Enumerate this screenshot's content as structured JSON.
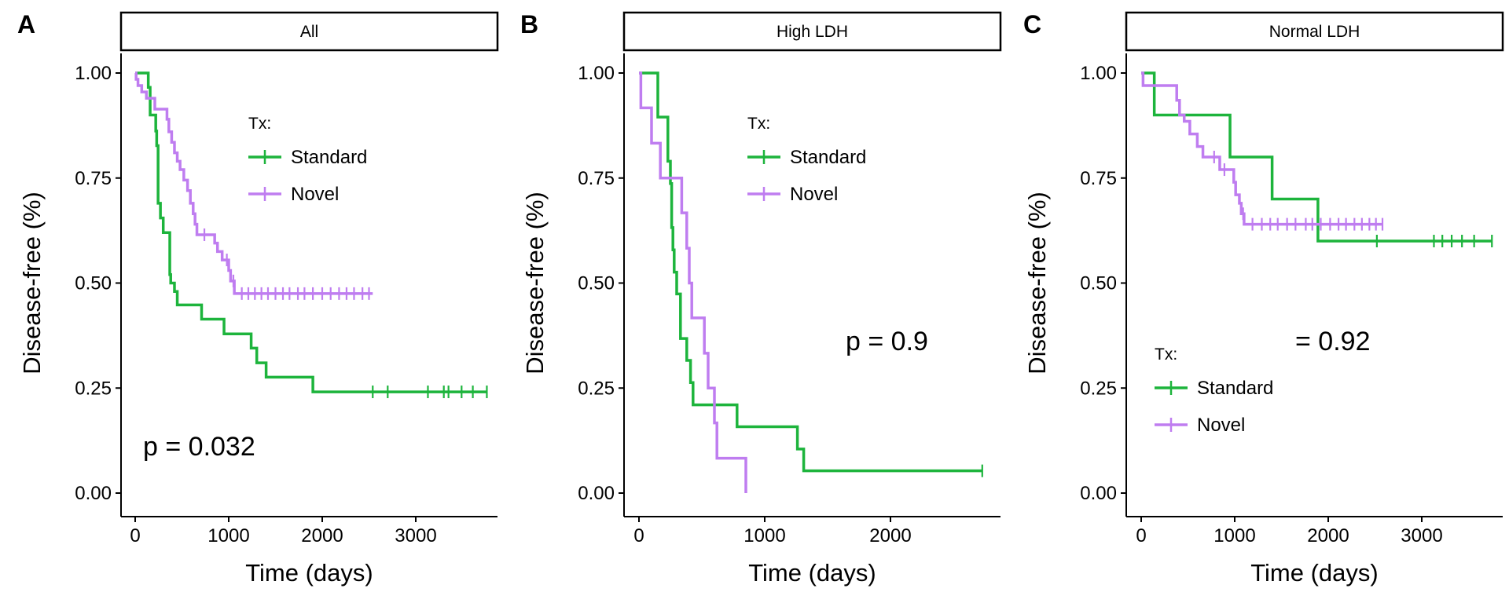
{
  "colors": {
    "Standard": "#1DB43C",
    "Novel": "#BF7DF0"
  },
  "legend_title": "Tx:",
  "legend_labels": [
    "Standard",
    "Novel"
  ],
  "chart_data": [
    {
      "type": "line",
      "panel": "A",
      "strip": "All",
      "xlabel": "Time (days)",
      "ylabel": "Disease-free (%)",
      "xlim": [
        -150,
        3900
      ],
      "ylim": [
        -0.04,
        1.04
      ],
      "xticks": [
        0,
        1000,
        2000,
        3000
      ],
      "yticks": [
        0.0,
        0.25,
        0.5,
        0.75,
        1.0
      ],
      "ytick_labels": [
        "0.00",
        "0.25",
        "0.50",
        "0.75",
        "1.00"
      ],
      "annotation": "p = 0.032",
      "legend_position": "upper-middle",
      "series": [
        {
          "name": "Standard",
          "steps": [
            [
              0,
              1.0
            ],
            [
              140,
              0.966
            ],
            [
              160,
              0.9
            ],
            [
              220,
              0.862
            ],
            [
              230,
              0.827
            ],
            [
              245,
              0.69
            ],
            [
              270,
              0.655
            ],
            [
              300,
              0.62
            ],
            [
              370,
              0.52
            ],
            [
              380,
              0.5
            ],
            [
              420,
              0.48
            ],
            [
              450,
              0.448
            ],
            [
              710,
              0.414
            ],
            [
              950,
              0.379
            ],
            [
              1240,
              0.345
            ],
            [
              1300,
              0.31
            ],
            [
              1400,
              0.276
            ],
            [
              1900,
              0.241
            ],
            [
              3760,
              0.241
            ]
          ],
          "censors": [
            2540,
            2700,
            3130,
            3300,
            3350,
            3490,
            3610,
            3760
          ]
        },
        {
          "name": "Novel",
          "steps": [
            [
              0,
              1.0
            ],
            [
              10,
              0.985
            ],
            [
              30,
              0.97
            ],
            [
              70,
              0.955
            ],
            [
              120,
              0.94
            ],
            [
              210,
              0.914
            ],
            [
              340,
              0.89
            ],
            [
              360,
              0.86
            ],
            [
              390,
              0.835
            ],
            [
              420,
              0.81
            ],
            [
              450,
              0.79
            ],
            [
              480,
              0.77
            ],
            [
              520,
              0.745
            ],
            [
              560,
              0.72
            ],
            [
              590,
              0.69
            ],
            [
              620,
              0.665
            ],
            [
              640,
              0.64
            ],
            [
              660,
              0.615
            ],
            [
              850,
              0.595
            ],
            [
              880,
              0.575
            ],
            [
              930,
              0.555
            ],
            [
              1000,
              0.53
            ],
            [
              1020,
              0.505
            ],
            [
              1060,
              0.475
            ],
            [
              2540,
              0.475
            ]
          ],
          "censors": [
            740,
            980,
            1050,
            1140,
            1210,
            1280,
            1350,
            1420,
            1500,
            1580,
            1650,
            1740,
            1810,
            1900,
            2000,
            2090,
            2180,
            2260,
            2340,
            2430,
            2500
          ]
        }
      ]
    },
    {
      "type": "line",
      "panel": "B",
      "strip": "High LDH",
      "xlabel": "Time (days)",
      "ylabel": "Disease-free (%)",
      "xlim": [
        -60,
        2800
      ],
      "ylim": [
        -0.04,
        1.04
      ],
      "xticks": [
        0,
        1000,
        2000
      ],
      "yticks": [
        0.0,
        0.25,
        0.5,
        0.75,
        1.0
      ],
      "ytick_labels": [
        "0.00",
        "0.25",
        "0.50",
        "0.75",
        "1.00"
      ],
      "annotation": "p = 0.9",
      "legend_position": "upper-middle",
      "series": [
        {
          "name": "Standard",
          "steps": [
            [
              0,
              1.0
            ],
            [
              150,
              0.895
            ],
            [
              230,
              0.79
            ],
            [
              250,
              0.737
            ],
            [
              260,
              0.632
            ],
            [
              270,
              0.579
            ],
            [
              280,
              0.526
            ],
            [
              300,
              0.474
            ],
            [
              330,
              0.368
            ],
            [
              380,
              0.316
            ],
            [
              410,
              0.263
            ],
            [
              430,
              0.21
            ],
            [
              780,
              0.158
            ],
            [
              1260,
              0.105
            ],
            [
              1310,
              0.053
            ],
            [
              2730,
              0.053
            ]
          ],
          "censors": [
            2730
          ]
        },
        {
          "name": "Novel",
          "steps": [
            [
              0,
              1.0
            ],
            [
              15,
              0.917
            ],
            [
              100,
              0.833
            ],
            [
              170,
              0.75
            ],
            [
              340,
              0.667
            ],
            [
              380,
              0.583
            ],
            [
              400,
              0.5
            ],
            [
              420,
              0.417
            ],
            [
              520,
              0.333
            ],
            [
              550,
              0.25
            ],
            [
              600,
              0.167
            ],
            [
              620,
              0.083
            ],
            [
              850,
              0.0
            ]
          ],
          "censors": []
        }
      ]
    },
    {
      "type": "line",
      "panel": "C",
      "strip": "Normal LDH",
      "xlabel": "Time (days)",
      "ylabel": "Disease-free (%)",
      "xlim": [
        -150,
        3900
      ],
      "ylim": [
        -0.04,
        1.04
      ],
      "xticks": [
        0,
        1000,
        2000,
        3000
      ],
      "yticks": [
        0.0,
        0.25,
        0.5,
        0.75,
        1.0
      ],
      "ytick_labels": [
        "0.00",
        "0.25",
        "0.50",
        "0.75",
        "1.00"
      ],
      "annotation": "= 0.92",
      "legend_position": "lower-left",
      "series": [
        {
          "name": "Standard",
          "steps": [
            [
              0,
              1.0
            ],
            [
              140,
              0.9
            ],
            [
              950,
              0.8
            ],
            [
              1400,
              0.7
            ],
            [
              1890,
              0.6
            ],
            [
              3750,
              0.6
            ]
          ],
          "censors": [
            2520,
            3130,
            3220,
            3320,
            3430,
            3560,
            3750
          ]
        },
        {
          "name": "Novel",
          "steps": [
            [
              0,
              1.0
            ],
            [
              20,
              0.97
            ],
            [
              380,
              0.935
            ],
            [
              410,
              0.9
            ],
            [
              460,
              0.885
            ],
            [
              520,
              0.855
            ],
            [
              600,
              0.825
            ],
            [
              660,
              0.8
            ],
            [
              840,
              0.77
            ],
            [
              990,
              0.74
            ],
            [
              1010,
              0.71
            ],
            [
              1050,
              0.69
            ],
            [
              1070,
              0.665
            ],
            [
              1100,
              0.64
            ],
            [
              2580,
              0.64
            ]
          ],
          "censors": [
            780,
            890,
            1090,
            1190,
            1290,
            1380,
            1460,
            1560,
            1650,
            1760,
            1830,
            1920,
            2020,
            2110,
            2190,
            2280,
            2360,
            2440,
            2510,
            2580
          ]
        }
      ]
    }
  ]
}
